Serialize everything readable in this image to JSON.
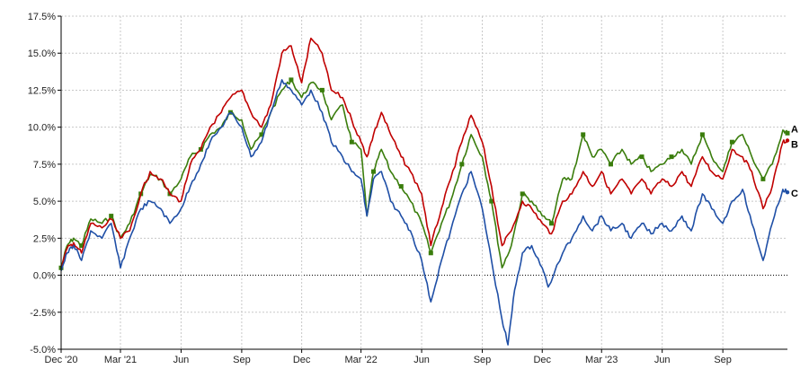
{
  "chart_data": {
    "type": "line",
    "title": "",
    "xlabel": "",
    "ylabel": "",
    "ylim": [
      -5.0,
      17.5
    ],
    "xlim": [
      "2020-12-01",
      "2023-12-08"
    ],
    "grid": true,
    "legend": "end-of-line labels",
    "y_ticks": [
      "-5.0%",
      "-2.5%",
      "0.0%",
      "2.5%",
      "5.0%",
      "7.5%",
      "10.0%",
      "12.5%",
      "15.0%",
      "17.5%"
    ],
    "x_ticks": [
      {
        "date": "2020-12-01",
        "label": "Dec '20"
      },
      {
        "date": "2021-03-01",
        "label": "Mar '21"
      },
      {
        "date": "2021-06-01",
        "label": "Jun"
      },
      {
        "date": "2021-09-01",
        "label": "Sep"
      },
      {
        "date": "2021-12-01",
        "label": "Dec"
      },
      {
        "date": "2022-03-01",
        "label": "Mar '22"
      },
      {
        "date": "2022-06-01",
        "label": "Jun"
      },
      {
        "date": "2022-09-01",
        "label": "Sep"
      },
      {
        "date": "2022-12-01",
        "label": "Dec"
      },
      {
        "date": "2023-03-01",
        "label": "Mar '23"
      },
      {
        "date": "2023-06-01",
        "label": "Jun"
      },
      {
        "date": "2023-09-01",
        "label": "Sep"
      }
    ],
    "series": [
      {
        "name": "A",
        "color": "#3a7d0c",
        "points": [
          [
            "2020-12-01",
            0.5
          ],
          [
            "2020-12-10",
            2.0
          ],
          [
            "2020-12-20",
            2.5
          ],
          [
            "2021-01-01",
            2.0
          ],
          [
            "2021-01-15",
            3.8
          ],
          [
            "2021-02-01",
            3.5
          ],
          [
            "2021-02-15",
            4.0
          ],
          [
            "2021-03-01",
            2.5
          ],
          [
            "2021-03-15",
            3.5
          ],
          [
            "2021-04-01",
            5.5
          ],
          [
            "2021-04-15",
            6.8
          ],
          [
            "2021-05-01",
            6.5
          ],
          [
            "2021-05-15",
            5.5
          ],
          [
            "2021-06-01",
            6.5
          ],
          [
            "2021-06-15",
            8.0
          ],
          [
            "2021-07-01",
            8.5
          ],
          [
            "2021-07-15",
            9.5
          ],
          [
            "2021-08-01",
            10.0
          ],
          [
            "2021-08-15",
            11.0
          ],
          [
            "2021-09-01",
            10.5
          ],
          [
            "2021-09-15",
            8.5
          ],
          [
            "2021-10-01",
            9.5
          ],
          [
            "2021-10-15",
            11.0
          ],
          [
            "2021-11-01",
            12.5
          ],
          [
            "2021-11-15",
            13.2
          ],
          [
            "2021-12-01",
            12.0
          ],
          [
            "2021-12-15",
            13.0
          ],
          [
            "2022-01-01",
            12.5
          ],
          [
            "2022-01-15",
            10.5
          ],
          [
            "2022-02-01",
            11.5
          ],
          [
            "2022-02-15",
            9.0
          ],
          [
            "2022-03-01",
            8.5
          ],
          [
            "2022-03-10",
            4.0
          ],
          [
            "2022-03-20",
            7.0
          ],
          [
            "2022-04-01",
            8.5
          ],
          [
            "2022-04-15",
            7.0
          ],
          [
            "2022-05-01",
            6.0
          ],
          [
            "2022-05-15",
            5.0
          ],
          [
            "2022-06-01",
            3.5
          ],
          [
            "2022-06-15",
            1.5
          ],
          [
            "2022-07-01",
            3.5
          ],
          [
            "2022-07-15",
            5.0
          ],
          [
            "2022-08-01",
            7.5
          ],
          [
            "2022-08-15",
            9.5
          ],
          [
            "2022-09-01",
            8.0
          ],
          [
            "2022-09-15",
            5.0
          ],
          [
            "2022-10-01",
            0.5
          ],
          [
            "2022-10-15",
            2.0
          ],
          [
            "2022-11-01",
            5.5
          ],
          [
            "2022-11-15",
            5.0
          ],
          [
            "2022-12-01",
            4.0
          ],
          [
            "2022-12-15",
            3.5
          ],
          [
            "2023-01-01",
            6.5
          ],
          [
            "2023-01-15",
            6.5
          ],
          [
            "2023-02-01",
            9.5
          ],
          [
            "2023-02-15",
            8.0
          ],
          [
            "2023-03-01",
            8.5
          ],
          [
            "2023-03-15",
            7.5
          ],
          [
            "2023-04-01",
            8.5
          ],
          [
            "2023-04-15",
            7.5
          ],
          [
            "2023-05-01",
            8.0
          ],
          [
            "2023-05-15",
            7.0
          ],
          [
            "2023-06-01",
            7.5
          ],
          [
            "2023-06-15",
            8.0
          ],
          [
            "2023-07-01",
            8.5
          ],
          [
            "2023-07-15",
            7.5
          ],
          [
            "2023-08-01",
            9.5
          ],
          [
            "2023-08-15",
            8.0
          ],
          [
            "2023-09-01",
            7.0
          ],
          [
            "2023-09-15",
            9.0
          ],
          [
            "2023-10-01",
            9.5
          ],
          [
            "2023-10-15",
            8.0
          ],
          [
            "2023-11-01",
            6.5
          ],
          [
            "2023-11-15",
            7.5
          ],
          [
            "2023-12-01",
            9.8
          ],
          [
            "2023-12-08",
            9.6
          ]
        ]
      },
      {
        "name": "B",
        "color": "#c00000",
        "points": [
          [
            "2020-12-01",
            0.5
          ],
          [
            "2020-12-10",
            1.8
          ],
          [
            "2020-12-20",
            2.2
          ],
          [
            "2021-01-01",
            1.5
          ],
          [
            "2021-01-15",
            3.5
          ],
          [
            "2021-02-01",
            3.2
          ],
          [
            "2021-02-15",
            3.8
          ],
          [
            "2021-03-01",
            2.5
          ],
          [
            "2021-03-15",
            3.0
          ],
          [
            "2021-04-01",
            5.5
          ],
          [
            "2021-04-15",
            7.0
          ],
          [
            "2021-05-01",
            6.5
          ],
          [
            "2021-05-15",
            5.5
          ],
          [
            "2021-06-01",
            5.0
          ],
          [
            "2021-06-15",
            7.5
          ],
          [
            "2021-07-01",
            8.5
          ],
          [
            "2021-07-15",
            10.0
          ],
          [
            "2021-08-01",
            11.0
          ],
          [
            "2021-08-15",
            12.0
          ],
          [
            "2021-09-01",
            12.5
          ],
          [
            "2021-09-15",
            11.0
          ],
          [
            "2021-10-01",
            10.0
          ],
          [
            "2021-10-15",
            11.5
          ],
          [
            "2021-11-01",
            15.0
          ],
          [
            "2021-11-15",
            15.5
          ],
          [
            "2021-12-01",
            13.0
          ],
          [
            "2021-12-15",
            16.0
          ],
          [
            "2022-01-01",
            15.0
          ],
          [
            "2022-01-15",
            12.5
          ],
          [
            "2022-02-01",
            12.0
          ],
          [
            "2022-02-15",
            10.5
          ],
          [
            "2022-03-01",
            9.0
          ],
          [
            "2022-03-10",
            8.0
          ],
          [
            "2022-03-20",
            9.5
          ],
          [
            "2022-04-01",
            11.0
          ],
          [
            "2022-04-15",
            9.5
          ],
          [
            "2022-05-01",
            8.0
          ],
          [
            "2022-05-15",
            7.0
          ],
          [
            "2022-06-01",
            5.5
          ],
          [
            "2022-06-15",
            2.0
          ],
          [
            "2022-07-01",
            4.5
          ],
          [
            "2022-07-15",
            6.5
          ],
          [
            "2022-08-01",
            9.0
          ],
          [
            "2022-08-15",
            10.8
          ],
          [
            "2022-09-01",
            9.0
          ],
          [
            "2022-09-15",
            6.0
          ],
          [
            "2022-10-01",
            2.0
          ],
          [
            "2022-10-15",
            3.0
          ],
          [
            "2022-11-01",
            5.0
          ],
          [
            "2022-11-15",
            4.5
          ],
          [
            "2022-12-01",
            3.5
          ],
          [
            "2022-12-15",
            2.8
          ],
          [
            "2023-01-01",
            5.0
          ],
          [
            "2023-01-15",
            5.5
          ],
          [
            "2023-02-01",
            7.0
          ],
          [
            "2023-02-15",
            6.0
          ],
          [
            "2023-03-01",
            7.0
          ],
          [
            "2023-03-15",
            5.5
          ],
          [
            "2023-04-01",
            6.5
          ],
          [
            "2023-04-15",
            5.5
          ],
          [
            "2023-05-01",
            6.5
          ],
          [
            "2023-05-15",
            5.5
          ],
          [
            "2023-06-01",
            6.5
          ],
          [
            "2023-06-15",
            6.0
          ],
          [
            "2023-07-01",
            7.0
          ],
          [
            "2023-07-15",
            6.0
          ],
          [
            "2023-08-01",
            8.0
          ],
          [
            "2023-08-15",
            7.0
          ],
          [
            "2023-09-01",
            6.5
          ],
          [
            "2023-09-15",
            8.5
          ],
          [
            "2023-10-01",
            8.0
          ],
          [
            "2023-10-15",
            7.0
          ],
          [
            "2023-11-01",
            4.5
          ],
          [
            "2023-11-15",
            6.0
          ],
          [
            "2023-12-01",
            9.0
          ],
          [
            "2023-12-08",
            9.1
          ]
        ]
      },
      {
        "name": "C",
        "color": "#1f4fa6",
        "points": [
          [
            "2020-12-01",
            0.3
          ],
          [
            "2020-12-10",
            1.5
          ],
          [
            "2020-12-20",
            2.0
          ],
          [
            "2021-01-01",
            1.0
          ],
          [
            "2021-01-15",
            3.0
          ],
          [
            "2021-02-01",
            2.5
          ],
          [
            "2021-02-15",
            3.5
          ],
          [
            "2021-03-01",
            0.5
          ],
          [
            "2021-03-15",
            2.5
          ],
          [
            "2021-04-01",
            4.5
          ],
          [
            "2021-04-15",
            5.0
          ],
          [
            "2021-05-01",
            4.5
          ],
          [
            "2021-05-15",
            3.5
          ],
          [
            "2021-06-01",
            4.5
          ],
          [
            "2021-06-15",
            6.0
          ],
          [
            "2021-07-01",
            7.5
          ],
          [
            "2021-07-15",
            9.0
          ],
          [
            "2021-08-01",
            10.0
          ],
          [
            "2021-08-15",
            11.0
          ],
          [
            "2021-09-01",
            10.0
          ],
          [
            "2021-09-15",
            8.0
          ],
          [
            "2021-10-01",
            9.0
          ],
          [
            "2021-10-15",
            11.0
          ],
          [
            "2021-11-01",
            13.2
          ],
          [
            "2021-11-15",
            12.5
          ],
          [
            "2021-12-01",
            11.5
          ],
          [
            "2021-12-15",
            12.5
          ],
          [
            "2022-01-01",
            11.0
          ],
          [
            "2022-01-15",
            9.0
          ],
          [
            "2022-02-01",
            8.0
          ],
          [
            "2022-02-15",
            7.0
          ],
          [
            "2022-03-01",
            6.5
          ],
          [
            "2022-03-10",
            4.0
          ],
          [
            "2022-03-20",
            6.5
          ],
          [
            "2022-04-01",
            7.0
          ],
          [
            "2022-04-15",
            5.0
          ],
          [
            "2022-05-01",
            4.0
          ],
          [
            "2022-05-15",
            3.0
          ],
          [
            "2022-06-01",
            1.0
          ],
          [
            "2022-06-15",
            -1.8
          ],
          [
            "2022-07-01",
            1.0
          ],
          [
            "2022-07-15",
            3.0
          ],
          [
            "2022-08-01",
            5.5
          ],
          [
            "2022-08-15",
            7.0
          ],
          [
            "2022-09-01",
            4.5
          ],
          [
            "2022-09-15",
            1.0
          ],
          [
            "2022-10-01",
            -3.0
          ],
          [
            "2022-10-10",
            -4.7
          ],
          [
            "2022-10-20",
            -1.0
          ],
          [
            "2022-11-01",
            1.5
          ],
          [
            "2022-11-15",
            2.0
          ],
          [
            "2022-12-01",
            0.5
          ],
          [
            "2022-12-10",
            -0.8
          ],
          [
            "2023-01-01",
            1.5
          ],
          [
            "2023-01-15",
            2.5
          ],
          [
            "2023-02-01",
            4.0
          ],
          [
            "2023-02-15",
            3.0
          ],
          [
            "2023-03-01",
            4.0
          ],
          [
            "2023-03-15",
            3.0
          ],
          [
            "2023-04-01",
            3.5
          ],
          [
            "2023-04-15",
            2.5
          ],
          [
            "2023-05-01",
            3.5
          ],
          [
            "2023-05-15",
            2.8
          ],
          [
            "2023-06-01",
            3.5
          ],
          [
            "2023-06-15",
            3.0
          ],
          [
            "2023-07-01",
            4.0
          ],
          [
            "2023-07-15",
            3.0
          ],
          [
            "2023-08-01",
            5.5
          ],
          [
            "2023-08-15",
            4.5
          ],
          [
            "2023-09-01",
            3.5
          ],
          [
            "2023-09-15",
            5.0
          ],
          [
            "2023-10-01",
            5.8
          ],
          [
            "2023-10-15",
            3.5
          ],
          [
            "2023-11-01",
            1.0
          ],
          [
            "2023-11-15",
            3.5
          ],
          [
            "2023-12-01",
            5.8
          ],
          [
            "2023-12-08",
            5.6
          ]
        ]
      }
    ]
  }
}
